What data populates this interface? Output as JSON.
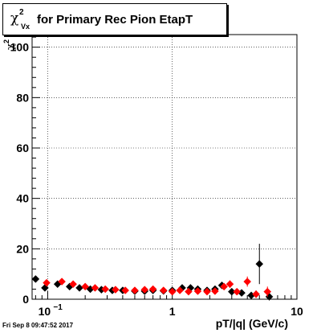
{
  "chart_data": {
    "type": "scatter",
    "title": "for Primary Rec Pion EtapT",
    "title_symbol": "χ",
    "title_symbol_sup": "2",
    "title_symbol_sub": "Vx",
    "xlabel": "pT/|q| (GeV/c)",
    "ylabel_symbol": "χ",
    "ylabel_sup": "2",
    "xscale": "log",
    "xlim": [
      0.075,
      10
    ],
    "ylim": [
      0,
      105
    ],
    "grid": true,
    "x_ticks": [
      {
        "v": 0.1,
        "label": "10",
        "exp": "−1"
      },
      {
        "v": 1,
        "label": "1"
      },
      {
        "v": 10,
        "label": "10"
      }
    ],
    "y_ticks": [
      0,
      20,
      40,
      60,
      80,
      100
    ],
    "series": [
      {
        "marker": "diamond",
        "color": "#000000",
        "points": [
          [
            0.08,
            8,
            1.0
          ],
          [
            0.095,
            4.5,
            0.5
          ],
          [
            0.12,
            6,
            0.5
          ],
          [
            0.15,
            5,
            0.5
          ],
          [
            0.18,
            4.5,
            0.5
          ],
          [
            0.22,
            4,
            0.5
          ],
          [
            0.27,
            3.8,
            0.4
          ],
          [
            0.33,
            3.5,
            0.4
          ],
          [
            0.4,
            3.5,
            0.4
          ],
          [
            0.5,
            3.2,
            0.4
          ],
          [
            0.6,
            3.2,
            0.4
          ],
          [
            0.7,
            3.5,
            0.4
          ],
          [
            0.85,
            3.3,
            0.4
          ],
          [
            1.0,
            3.5,
            0.5
          ],
          [
            1.2,
            4.5,
            0.5
          ],
          [
            1.4,
            4.5,
            0.6
          ],
          [
            1.6,
            4.0,
            0.6
          ],
          [
            1.9,
            3.5,
            0.7
          ],
          [
            2.2,
            4.0,
            0.8
          ],
          [
            2.5,
            5.5,
            1.2
          ],
          [
            3.0,
            3.0,
            1.0
          ],
          [
            3.6,
            2.5,
            1.2
          ],
          [
            4.3,
            1.5,
            1.0
          ],
          [
            5.0,
            14,
            8.0
          ],
          [
            6.0,
            1.0,
            1.5
          ]
        ]
      },
      {
        "marker": "diamond",
        "color": "#ff0000",
        "points": [
          [
            0.098,
            6.5,
            0.5
          ],
          [
            0.13,
            7,
            0.5
          ],
          [
            0.16,
            6,
            0.5
          ],
          [
            0.2,
            5,
            0.5
          ],
          [
            0.24,
            4.5,
            0.4
          ],
          [
            0.29,
            4.0,
            0.4
          ],
          [
            0.35,
            3.8,
            0.4
          ],
          [
            0.42,
            3.5,
            0.4
          ],
          [
            0.5,
            3.5,
            0.4
          ],
          [
            0.6,
            3.8,
            0.4
          ],
          [
            0.7,
            4.0,
            0.4
          ],
          [
            0.85,
            3.5,
            0.4
          ],
          [
            1.0,
            3.0,
            0.5
          ],
          [
            1.15,
            3.5,
            0.5
          ],
          [
            1.35,
            3.0,
            0.6
          ],
          [
            1.6,
            3.2,
            0.6
          ],
          [
            1.9,
            3.0,
            0.7
          ],
          [
            2.2,
            3.2,
            0.8
          ],
          [
            2.6,
            5.0,
            1.0
          ],
          [
            2.9,
            6.0,
            1.5
          ],
          [
            3.3,
            3.0,
            1.0
          ],
          [
            4.0,
            7.0,
            2.0
          ],
          [
            4.7,
            2.0,
            1.5
          ],
          [
            5.8,
            3.0,
            2.0
          ]
        ]
      }
    ]
  },
  "timestamp": "Fri Sep  8 09:47:52 2017"
}
